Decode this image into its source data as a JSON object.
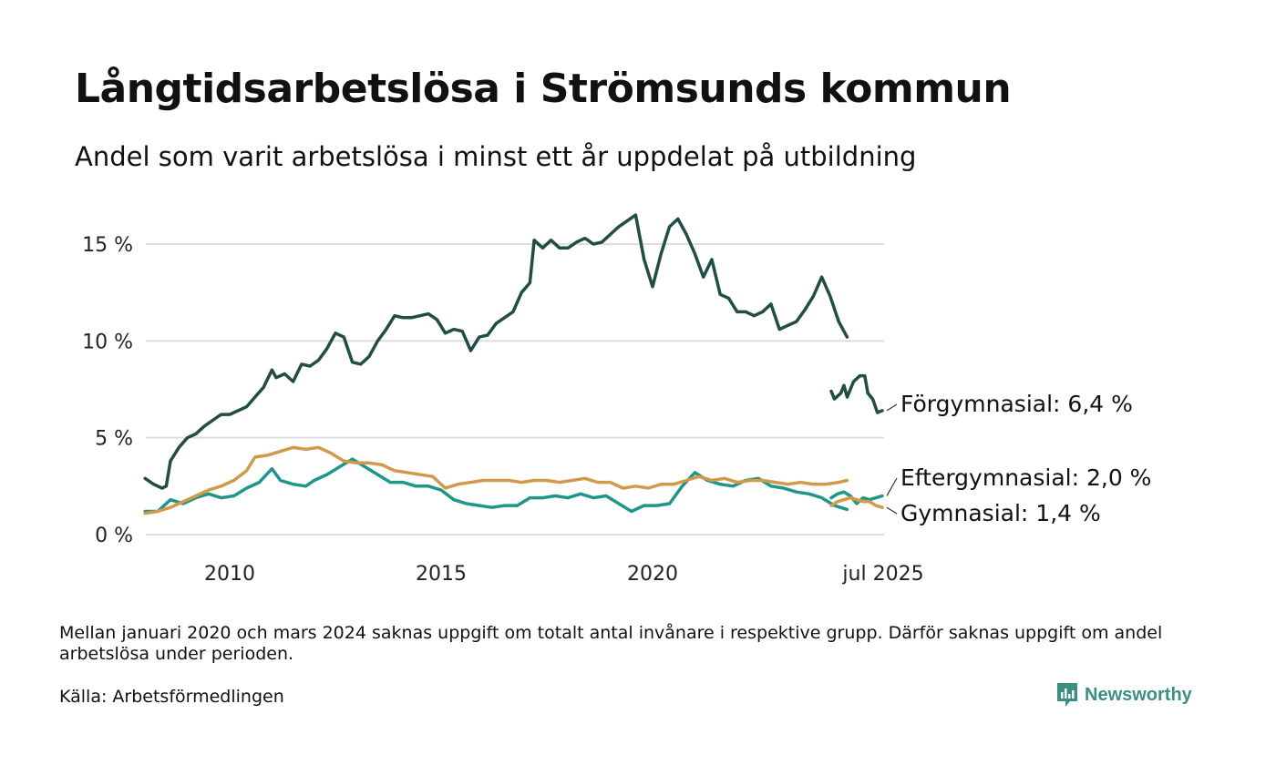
{
  "title": "Långtidsarbetslösa i Strömsunds kommun",
  "subtitle": "Andel som varit arbetslösa i minst ett år uppdelat på utbildning",
  "note": "Mellan januari 2020 och mars 2024 saknas uppgift om totalt antal invånare i respektive grupp. Därför saknas uppgift om andel arbetslösa under perioden.",
  "source": "Källa: Arbetsförmedlingen",
  "brand": {
    "name": "Newsworthy",
    "icon": "newsworthy-logo-icon",
    "color": "#3a8f82"
  },
  "chart_data": {
    "type": "line",
    "title": "Långtidsarbetslösa i Strömsunds kommun",
    "subtitle": "Andel som varit arbetslösa i minst ett år uppdelat på utbildning",
    "xlabel": "",
    "ylabel": "",
    "xlim": [
      2008.0,
      2025.6
    ],
    "ylim": [
      0,
      17
    ],
    "y_ticks": [
      0,
      5,
      10,
      15
    ],
    "y_tick_labels": [
      "0 %",
      "5 %",
      "10 %",
      "15 %"
    ],
    "x_ticks": [
      2010,
      2015,
      2020,
      2025.5
    ],
    "x_tick_labels": [
      "2010",
      "2015",
      "2020",
      "jul 2025"
    ],
    "grid": "horizontal",
    "legend": "direct labels at line ends",
    "gap": [
      2020.0,
      2024.2
    ],
    "series": [
      {
        "name": "Förgymnasial",
        "end_label": "Förgymnasial: 6,4 %",
        "color": "#214d44",
        "segments": [
          [
            [
              2008.0,
              2.9
            ],
            [
              2008.2,
              2.6
            ],
            [
              2008.4,
              2.4
            ],
            [
              2008.5,
              2.5
            ],
            [
              2008.6,
              3.8
            ],
            [
              2008.8,
              4.5
            ],
            [
              2009.0,
              5.0
            ],
            [
              2009.2,
              5.2
            ],
            [
              2009.4,
              5.6
            ],
            [
              2009.6,
              5.9
            ],
            [
              2009.8,
              6.2
            ],
            [
              2010.0,
              6.2
            ],
            [
              2010.2,
              6.4
            ],
            [
              2010.4,
              6.6
            ],
            [
              2010.6,
              7.1
            ],
            [
              2010.8,
              7.6
            ],
            [
              2011.0,
              8.5
            ],
            [
              2011.1,
              8.1
            ],
            [
              2011.3,
              8.3
            ],
            [
              2011.5,
              7.9
            ],
            [
              2011.7,
              8.8
            ],
            [
              2011.9,
              8.7
            ],
            [
              2012.1,
              9.0
            ],
            [
              2012.3,
              9.6
            ],
            [
              2012.5,
              10.4
            ],
            [
              2012.7,
              10.2
            ],
            [
              2012.9,
              8.9
            ],
            [
              2013.1,
              8.8
            ],
            [
              2013.3,
              9.2
            ],
            [
              2013.5,
              10.0
            ],
            [
              2013.7,
              10.6
            ],
            [
              2013.9,
              11.3
            ],
            [
              2014.1,
              11.2
            ],
            [
              2014.3,
              11.2
            ],
            [
              2014.5,
              11.3
            ],
            [
              2014.7,
              11.4
            ],
            [
              2014.9,
              11.1
            ],
            [
              2015.1,
              10.4
            ],
            [
              2015.3,
              10.6
            ],
            [
              2015.5,
              10.5
            ],
            [
              2015.7,
              9.5
            ],
            [
              2015.9,
              10.2
            ],
            [
              2016.1,
              10.3
            ],
            [
              2016.3,
              10.9
            ],
            [
              2016.5,
              11.2
            ],
            [
              2016.7,
              11.5
            ],
            [
              2016.9,
              12.5
            ],
            [
              2017.1,
              13.0
            ],
            [
              2017.2,
              15.2
            ],
            [
              2017.4,
              14.8
            ],
            [
              2017.6,
              15.2
            ],
            [
              2017.8,
              14.8
            ],
            [
              2018.0,
              14.8
            ],
            [
              2018.2,
              15.1
            ],
            [
              2018.4,
              15.3
            ],
            [
              2018.6,
              15.0
            ],
            [
              2018.8,
              15.1
            ],
            [
              2019.0,
              15.5
            ],
            [
              2019.2,
              15.9
            ],
            [
              2019.4,
              16.2
            ],
            [
              2019.6,
              16.5
            ],
            [
              2019.8,
              14.2
            ],
            [
              2020.0,
              12.8
            ],
            [
              2020.2,
              14.5
            ],
            [
              2020.4,
              15.9
            ],
            [
              2020.6,
              16.3
            ],
            [
              2020.8,
              15.5
            ],
            [
              2021.0,
              14.5
            ],
            [
              2021.2,
              13.3
            ],
            [
              2021.4,
              14.2
            ],
            [
              2021.6,
              12.4
            ],
            [
              2021.8,
              12.2
            ],
            [
              2022.0,
              11.5
            ],
            [
              2022.2,
              11.5
            ],
            [
              2022.4,
              11.3
            ],
            [
              2022.6,
              11.5
            ],
            [
              2022.8,
              11.9
            ],
            [
              2023.0,
              10.6
            ],
            [
              2023.2,
              10.8
            ],
            [
              2023.4,
              11.0
            ],
            [
              2023.6,
              11.6
            ],
            [
              2023.8,
              12.3
            ],
            [
              2024.0,
              13.3
            ],
            [
              2024.2,
              12.3
            ],
            [
              2024.4,
              11.0
            ],
            [
              2024.6,
              10.2
            ]
          ]
        ],
        "values_raw": "segment 1 covers 2008–2020 (drawn to x≈2024.6 on a compressed scale); segment 2 covers 2024–2025",
        "segment2": [
          [
            2023.9,
            7.4
          ],
          [
            2024.0,
            7.0
          ],
          [
            2024.2,
            7.3
          ],
          [
            2024.3,
            7.7
          ],
          [
            2024.4,
            7.1
          ],
          [
            2024.6,
            7.9
          ],
          [
            2024.8,
            8.2
          ],
          [
            2024.95,
            8.2
          ],
          [
            2025.05,
            7.3
          ],
          [
            2025.2,
            7.0
          ],
          [
            2025.35,
            6.3
          ],
          [
            2025.5,
            6.4
          ]
        ]
      },
      {
        "name": "Eftergymnasial",
        "end_label": "Eftergymnasial: 2,0 %",
        "color": "#1f9688",
        "values": [
          [
            2008.0,
            1.2
          ],
          [
            2008.3,
            1.2
          ],
          [
            2008.6,
            1.8
          ],
          [
            2008.9,
            1.6
          ],
          [
            2009.2,
            1.9
          ],
          [
            2009.5,
            2.1
          ],
          [
            2009.8,
            1.9
          ],
          [
            2010.1,
            2.0
          ],
          [
            2010.4,
            2.4
          ],
          [
            2010.7,
            2.7
          ],
          [
            2011.0,
            3.4
          ],
          [
            2011.2,
            2.8
          ],
          [
            2011.5,
            2.6
          ],
          [
            2011.8,
            2.5
          ],
          [
            2012.0,
            2.8
          ],
          [
            2012.3,
            3.1
          ],
          [
            2012.6,
            3.5
          ],
          [
            2012.9,
            3.9
          ],
          [
            2013.2,
            3.5
          ],
          [
            2013.5,
            3.1
          ],
          [
            2013.8,
            2.7
          ],
          [
            2014.1,
            2.7
          ],
          [
            2014.4,
            2.5
          ],
          [
            2014.7,
            2.5
          ],
          [
            2015.0,
            2.3
          ],
          [
            2015.3,
            1.8
          ],
          [
            2015.6,
            1.6
          ],
          [
            2015.9,
            1.5
          ],
          [
            2016.2,
            1.4
          ],
          [
            2016.5,
            1.5
          ],
          [
            2016.8,
            1.5
          ],
          [
            2017.1,
            1.9
          ],
          [
            2017.4,
            1.9
          ],
          [
            2017.7,
            2.0
          ],
          [
            2018.0,
            1.9
          ],
          [
            2018.3,
            2.1
          ],
          [
            2018.6,
            1.9
          ],
          [
            2018.9,
            2.0
          ],
          [
            2019.2,
            1.6
          ],
          [
            2019.5,
            1.2
          ],
          [
            2019.8,
            1.5
          ],
          [
            2020.1,
            1.5
          ],
          [
            2020.4,
            1.6
          ],
          [
            2020.7,
            2.5
          ],
          [
            2021.0,
            3.2
          ],
          [
            2021.3,
            2.8
          ],
          [
            2021.6,
            2.6
          ],
          [
            2021.9,
            2.5
          ],
          [
            2022.2,
            2.8
          ],
          [
            2022.5,
            2.9
          ],
          [
            2022.8,
            2.5
          ],
          [
            2023.1,
            2.4
          ],
          [
            2023.4,
            2.2
          ],
          [
            2023.7,
            2.1
          ],
          [
            2024.0,
            1.9
          ],
          [
            2024.3,
            1.5
          ],
          [
            2024.6,
            1.3
          ]
        ],
        "segment2": [
          [
            2023.9,
            1.9
          ],
          [
            2024.1,
            2.1
          ],
          [
            2024.3,
            2.2
          ],
          [
            2024.5,
            2.0
          ],
          [
            2024.7,
            1.6
          ],
          [
            2024.9,
            1.9
          ],
          [
            2025.1,
            1.8
          ],
          [
            2025.3,
            1.9
          ],
          [
            2025.5,
            2.0
          ]
        ]
      },
      {
        "name": "Gymnasial",
        "end_label": "Gymnasial: 1,4 %",
        "color": "#d09a4a",
        "values": [
          [
            2008.0,
            1.1
          ],
          [
            2008.3,
            1.2
          ],
          [
            2008.6,
            1.4
          ],
          [
            2008.9,
            1.7
          ],
          [
            2009.2,
            2.0
          ],
          [
            2009.5,
            2.3
          ],
          [
            2009.8,
            2.5
          ],
          [
            2010.1,
            2.8
          ],
          [
            2010.4,
            3.3
          ],
          [
            2010.6,
            4.0
          ],
          [
            2010.9,
            4.1
          ],
          [
            2011.2,
            4.3
          ],
          [
            2011.5,
            4.5
          ],
          [
            2011.8,
            4.4
          ],
          [
            2012.1,
            4.5
          ],
          [
            2012.4,
            4.2
          ],
          [
            2012.7,
            3.8
          ],
          [
            2013.0,
            3.7
          ],
          [
            2013.3,
            3.7
          ],
          [
            2013.6,
            3.6
          ],
          [
            2013.9,
            3.3
          ],
          [
            2014.2,
            3.2
          ],
          [
            2014.5,
            3.1
          ],
          [
            2014.8,
            3.0
          ],
          [
            2015.1,
            2.4
          ],
          [
            2015.4,
            2.6
          ],
          [
            2015.7,
            2.7
          ],
          [
            2016.0,
            2.8
          ],
          [
            2016.3,
            2.8
          ],
          [
            2016.6,
            2.8
          ],
          [
            2016.9,
            2.7
          ],
          [
            2017.2,
            2.8
          ],
          [
            2017.5,
            2.8
          ],
          [
            2017.8,
            2.7
          ],
          [
            2018.1,
            2.8
          ],
          [
            2018.4,
            2.9
          ],
          [
            2018.7,
            2.7
          ],
          [
            2019.0,
            2.7
          ],
          [
            2019.3,
            2.4
          ],
          [
            2019.6,
            2.5
          ],
          [
            2019.9,
            2.4
          ],
          [
            2020.2,
            2.6
          ],
          [
            2020.5,
            2.6
          ],
          [
            2020.8,
            2.8
          ],
          [
            2021.1,
            3.0
          ],
          [
            2021.4,
            2.8
          ],
          [
            2021.7,
            2.9
          ],
          [
            2022.0,
            2.7
          ],
          [
            2022.3,
            2.8
          ],
          [
            2022.6,
            2.8
          ],
          [
            2022.9,
            2.7
          ],
          [
            2023.2,
            2.6
          ],
          [
            2023.5,
            2.7
          ],
          [
            2023.8,
            2.6
          ],
          [
            2024.1,
            2.6
          ],
          [
            2024.4,
            2.7
          ],
          [
            2024.6,
            2.8
          ]
        ],
        "segment2": [
          [
            2023.9,
            1.5
          ],
          [
            2024.1,
            1.7
          ],
          [
            2024.3,
            1.8
          ],
          [
            2024.5,
            1.9
          ],
          [
            2024.7,
            1.8
          ],
          [
            2024.9,
            1.7
          ],
          [
            2025.1,
            1.7
          ],
          [
            2025.3,
            1.5
          ],
          [
            2025.5,
            1.4
          ]
        ]
      }
    ]
  }
}
